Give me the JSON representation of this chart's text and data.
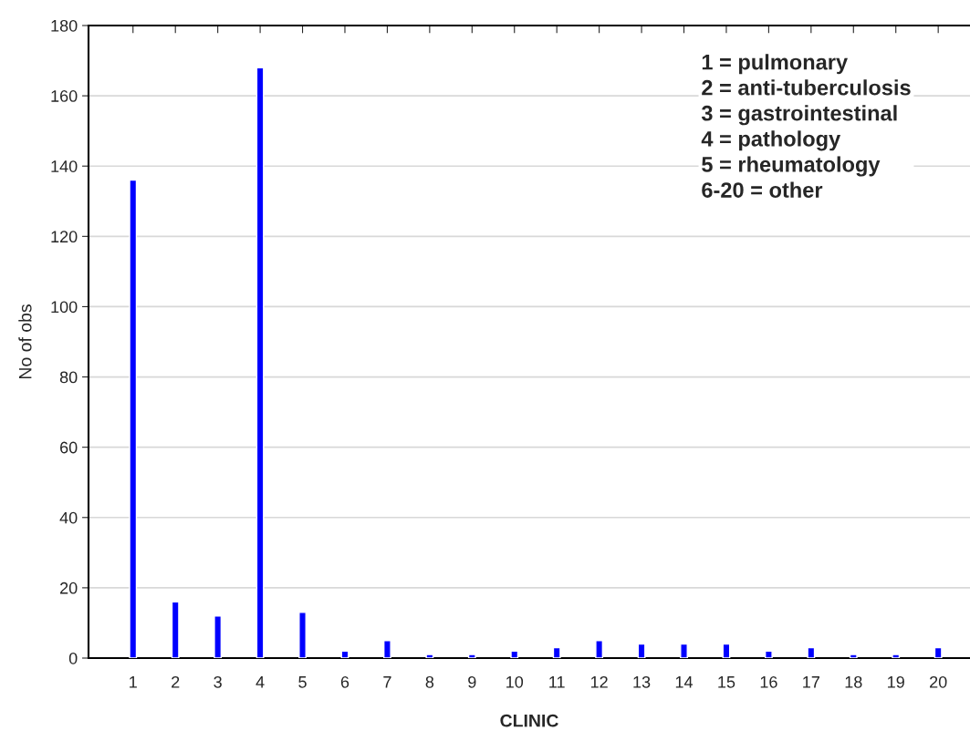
{
  "chart_data": {
    "type": "bar",
    "xlabel": "CLINIC",
    "ylabel": "No of obs",
    "categories": [
      "1",
      "2",
      "3",
      "4",
      "5",
      "6",
      "7",
      "8",
      "9",
      "10",
      "11",
      "12",
      "13",
      "14",
      "15",
      "16",
      "17",
      "18",
      "19",
      "20"
    ],
    "values": [
      136,
      16,
      12,
      168,
      13,
      2,
      5,
      1,
      1,
      2,
      3,
      5,
      4,
      4,
      4,
      2,
      3,
      1,
      1,
      3
    ],
    "color": "#0000ff",
    "ylim": [
      0,
      180
    ],
    "yticks": [
      0,
      20,
      40,
      60,
      80,
      100,
      120,
      140,
      160,
      180
    ],
    "grid": "y",
    "annotations": [
      "1 = pulmonary\n2 = anti-tuberculosis\n3 = gastrointestinal\n4 = pathology\n5 = rheumatology\n6-20 = other"
    ]
  }
}
